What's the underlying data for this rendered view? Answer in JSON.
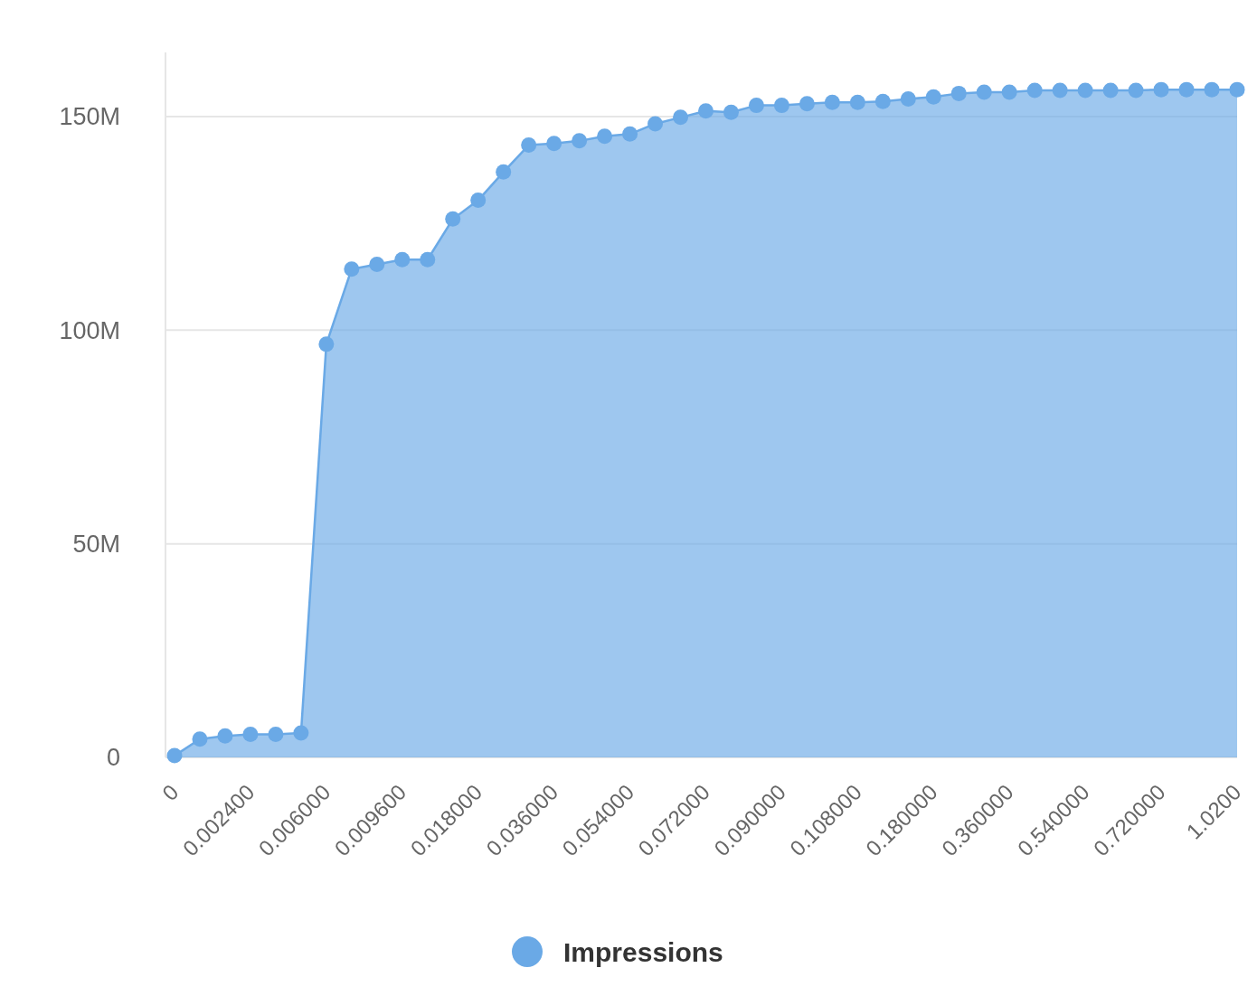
{
  "chart_data": {
    "type": "area",
    "categories": [
      "0",
      null,
      null,
      "0.002400",
      null,
      null,
      "0.006000",
      null,
      null,
      "0.009600",
      null,
      null,
      "0.018000",
      null,
      null,
      "0.036000",
      null,
      null,
      "0.054000",
      null,
      null,
      "0.072000",
      null,
      null,
      "0.090000",
      null,
      null,
      "0.108000",
      null,
      null,
      "0.180000",
      null,
      null,
      "0.360000",
      null,
      null,
      "0.540000",
      null,
      null,
      "0.720000",
      null,
      null,
      "1.0200"
    ],
    "series": [
      {
        "name": "Impressions",
        "color": "#6aa9e6",
        "values": [
          0.4,
          4.3,
          5,
          5.4,
          5.4,
          5.7,
          96.7,
          114.3,
          115.4,
          116.5,
          116.5,
          126,
          130.4,
          137,
          143.3,
          143.7,
          144.3,
          145.4,
          145.9,
          148.3,
          149.8,
          151.3,
          151,
          152.6,
          152.6,
          153,
          153.3,
          153.3,
          153.5,
          154.1,
          154.6,
          155.4,
          155.7,
          155.7,
          156.1,
          156.1,
          156.1,
          156.1,
          156.1,
          156.3,
          156.3,
          156.3,
          156.3
        ]
      }
    ],
    "ylim": [
      0,
      165
    ],
    "yticks": [
      {
        "value": 0,
        "label": "0"
      },
      {
        "value": 50,
        "label": "50M"
      },
      {
        "value": 100,
        "label": "100M"
      },
      {
        "value": 150,
        "label": "150M"
      }
    ],
    "grid": "y",
    "legend": "bottom",
    "marker": "circle"
  }
}
